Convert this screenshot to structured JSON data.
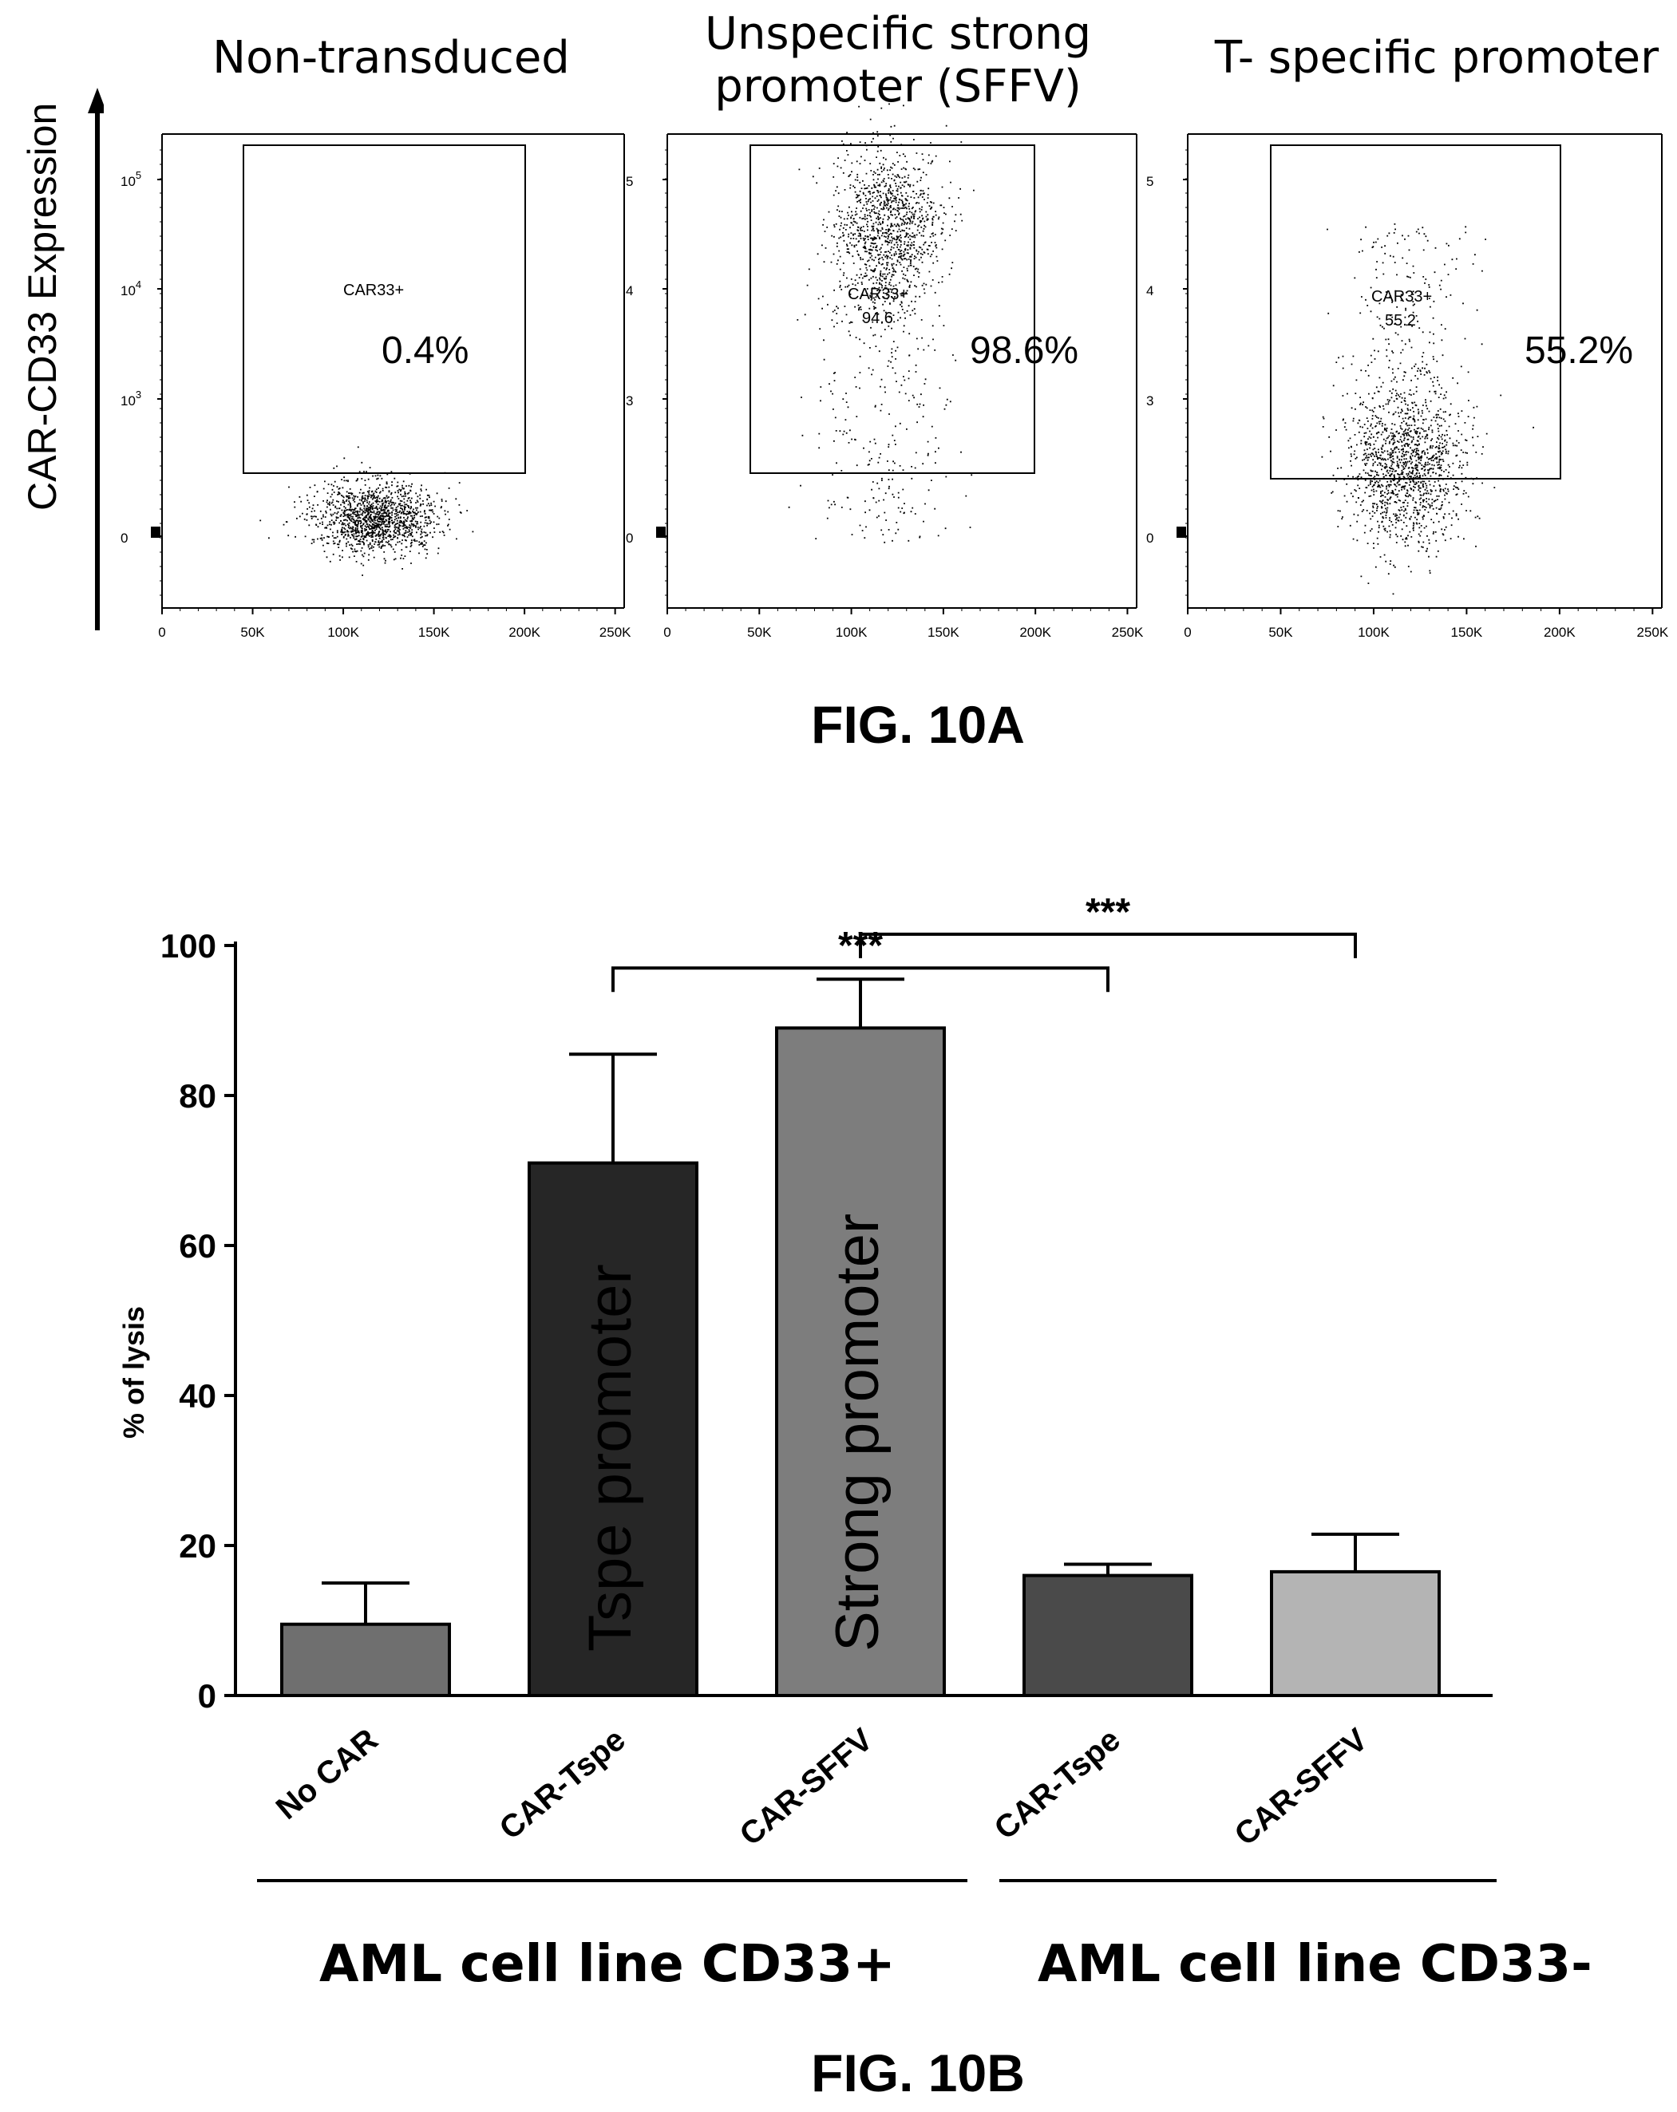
{
  "figure_a": {
    "label": "FIG. 10A",
    "y_axis_label": "CAR-CD33 Expression",
    "panels": [
      {
        "title_lines": [
          "Non-transduced"
        ],
        "gate_name": "CAR33+",
        "gate_value": "",
        "big_percent": "0.4%",
        "y_ticks": [
          "10",
          "10",
          "10",
          "0"
        ],
        "y_tick_exp": [
          "5",
          "4",
          "3",
          ""
        ],
        "x_ticks": [
          "0",
          "50K",
          "100K",
          "150K",
          "200K",
          "250K"
        ]
      },
      {
        "title_lines": [
          "Unspecific strong",
          "promoter (SFFV)"
        ],
        "gate_name": "CAR33+",
        "gate_value": "94.6",
        "big_percent": "98.6%",
        "y_ticks": [
          "5",
          "4",
          "3",
          "0"
        ],
        "y_tick_exp": [
          "",
          "",
          "",
          ""
        ],
        "x_ticks": [
          "0",
          "50K",
          "100K",
          "150K",
          "200K",
          "250K"
        ]
      },
      {
        "title_lines": [
          "T- specific promoter"
        ],
        "gate_name": "CAR33+",
        "gate_value": "55.2",
        "big_percent": "55.2%",
        "y_ticks": [
          "5",
          "4",
          "3",
          "0"
        ],
        "y_tick_exp": [
          "",
          "",
          "",
          ""
        ],
        "x_ticks": [
          "0",
          "50K",
          "100K",
          "150K",
          "200K",
          "250K"
        ]
      }
    ]
  },
  "chart_data": {
    "type": "bar",
    "title": "",
    "xlabel": "",
    "ylabel": "% of lysis",
    "ylim": [
      0,
      100
    ],
    "yticks": [
      "0",
      "20",
      "40",
      "60",
      "80",
      "100"
    ],
    "categories": [
      "No CAR",
      "CAR-Tspe",
      "CAR-SFFV",
      "CAR-Tspe",
      "CAR-SFFV"
    ],
    "values": [
      9.5,
      71,
      89,
      16,
      16.5
    ],
    "errors": [
      5.5,
      14.5,
      6.5,
      1.5,
      5
    ],
    "bar_colors": [
      "#6f6f6f",
      "#262626",
      "#7d7d7d",
      "#4a4a4a",
      "#b4b4b4"
    ],
    "bar_annotations": [
      "",
      "Tspe promoter",
      "Strong promoter",
      "",
      ""
    ],
    "significance": [
      {
        "from": 1,
        "to": 3,
        "y": 97,
        "label": "***"
      },
      {
        "from": 2,
        "to": 4,
        "y": 101.5,
        "label": "***"
      }
    ],
    "groups": [
      {
        "label": "AML cell line CD33+",
        "from": 0,
        "to": 2
      },
      {
        "label": "AML cell line CD33-",
        "from": 3,
        "to": 4
      }
    ]
  },
  "figure_b": {
    "label": "FIG. 10B"
  }
}
